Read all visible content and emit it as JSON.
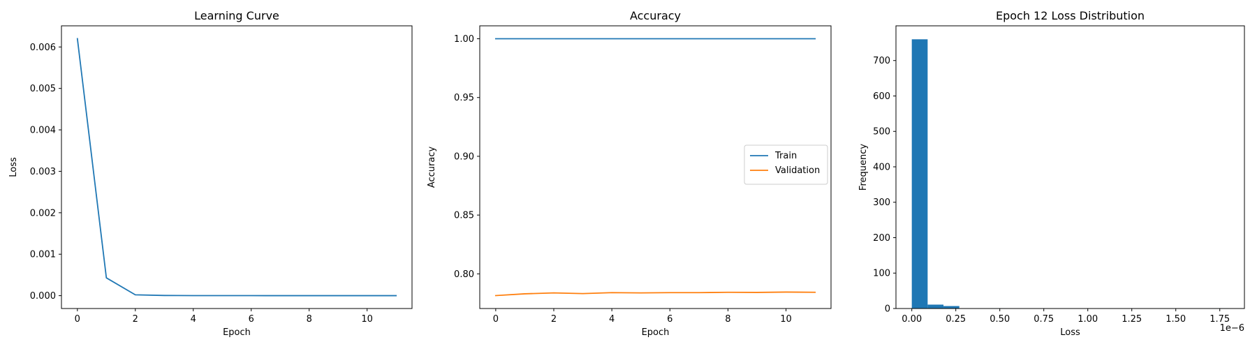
{
  "chart_data": [
    {
      "type": "line",
      "title": "Learning Curve",
      "xlabel": "Epoch",
      "ylabel": "Loss",
      "xlim": [
        -0.55,
        11.55
      ],
      "ylim": [
        -0.00031,
        0.00651
      ],
      "xticks": [
        0,
        2,
        4,
        6,
        8,
        10
      ],
      "xtick_labels": [
        "0",
        "2",
        "4",
        "6",
        "8",
        "10"
      ],
      "yticks": [
        0,
        0.001,
        0.002,
        0.003,
        0.004,
        0.005,
        0.006
      ],
      "ytick_labels": [
        "0.000",
        "0.001",
        "0.002",
        "0.003",
        "0.004",
        "0.005",
        "0.006"
      ],
      "series": [
        {
          "color": "#1f77b4",
          "x": [
            0,
            1,
            2,
            3,
            4,
            5,
            6,
            7,
            8,
            9,
            10,
            11
          ],
          "y": [
            0.0062,
            0.00043,
            2e-05,
            5e-06,
            2e-06,
            1e-06,
            1e-06,
            5e-07,
            5e-07,
            3e-07,
            3e-07,
            2e-07
          ]
        }
      ],
      "grid": false
    },
    {
      "type": "line",
      "title": "Accuracy",
      "xlabel": "Epoch",
      "ylabel": "Accuracy",
      "xlim": [
        -0.55,
        11.55
      ],
      "ylim": [
        0.7705,
        1.011
      ],
      "xticks": [
        0,
        2,
        4,
        6,
        8,
        10
      ],
      "xtick_labels": [
        "0",
        "2",
        "4",
        "6",
        "8",
        "10"
      ],
      "yticks": [
        0.8,
        0.85,
        0.9,
        0.95,
        1.0
      ],
      "ytick_labels": [
        "0.80",
        "0.85",
        "0.90",
        "0.95",
        "1.00"
      ],
      "legend_position": "center-right",
      "series": [
        {
          "name": "Train",
          "color": "#1f77b4",
          "x": [
            0,
            1,
            2,
            3,
            4,
            5,
            6,
            7,
            8,
            9,
            10,
            11
          ],
          "y": [
            1.0,
            1.0,
            1.0,
            1.0,
            1.0,
            1.0,
            1.0,
            1.0,
            1.0,
            1.0,
            1.0,
            1.0
          ]
        },
        {
          "name": "Validation",
          "color": "#ff7f0e",
          "x": [
            0,
            1,
            2,
            3,
            4,
            5,
            6,
            7,
            8,
            9,
            10,
            11
          ],
          "y": [
            0.7815,
            0.783,
            0.7838,
            0.7832,
            0.784,
            0.7838,
            0.784,
            0.784,
            0.7843,
            0.7842,
            0.7845,
            0.7843
          ]
        }
      ],
      "grid": false
    },
    {
      "type": "histogram",
      "title": "Epoch 12 Loss Distribution",
      "xlabel": "Loss",
      "ylabel": "Frequency",
      "offset_label": "1e−6",
      "x_unit_multiplier": 1e-06,
      "xlim": [
        -0.09,
        1.89
      ],
      "ylim": [
        0,
        798
      ],
      "xticks": [
        0,
        0.25,
        0.5,
        0.75,
        1.0,
        1.25,
        1.5,
        1.75
      ],
      "xtick_labels": [
        "0.00",
        "0.25",
        "0.50",
        "0.75",
        "1.00",
        "1.25",
        "1.50",
        "1.75"
      ],
      "yticks": [
        0,
        100,
        200,
        300,
        400,
        500,
        600,
        700
      ],
      "ytick_labels": [
        "0",
        "100",
        "200",
        "300",
        "400",
        "500",
        "600",
        "700"
      ],
      "color": "#1f77b4",
      "bin_edges": [
        0,
        0.09,
        0.18,
        0.27,
        0.36,
        0.45,
        0.54,
        0.63,
        0.72,
        0.81,
        0.9,
        0.99,
        1.08,
        1.17,
        1.26,
        1.35,
        1.44,
        1.53,
        1.62,
        1.71,
        1.8
      ],
      "counts": [
        760,
        11,
        7,
        0,
        0,
        1,
        0,
        0,
        0,
        0,
        0,
        0,
        0,
        0,
        0,
        0,
        0,
        0,
        0,
        1
      ],
      "grid": false
    }
  ]
}
